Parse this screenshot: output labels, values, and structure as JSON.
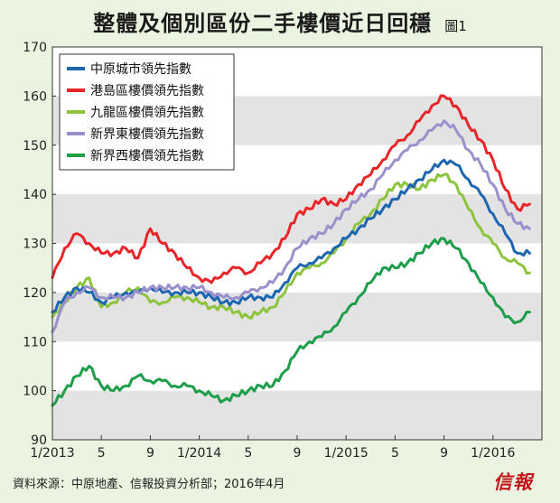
{
  "header": {
    "title": "整體及個別區份二手樓價近日回穩",
    "figure_label": "圖1"
  },
  "source": "資料來源：中原地產、信報投資分析部；2016年4月",
  "logo": "信報",
  "colors": {
    "background": "#eaf4e0",
    "band": "#e3e3e3",
    "plot_bg": "#ffffff"
  },
  "chart_data": {
    "type": "line",
    "title": "整體及個別區份二手樓價近日回穩",
    "xlabel": "",
    "ylabel": "",
    "ylim": [
      90,
      170
    ],
    "yticks": [
      90,
      100,
      110,
      120,
      130,
      140,
      150,
      160,
      170
    ],
    "xlim": [
      "2013-01",
      "2016-05"
    ],
    "xticks": [
      {
        "label": "1/2013",
        "x": "2013-01"
      },
      {
        "label": "5",
        "x": "2013-05"
      },
      {
        "label": "9",
        "x": "2013-09"
      },
      {
        "label": "1/2014",
        "x": "2014-01"
      },
      {
        "label": "5",
        "x": "2014-05"
      },
      {
        "label": "9",
        "x": "2014-09"
      },
      {
        "label": "1/2015",
        "x": "2015-01"
      },
      {
        "label": "5",
        "x": "2015-05"
      },
      {
        "label": "9",
        "x": "2015-09"
      },
      {
        "label": "1/2016",
        "x": "2016-01"
      }
    ],
    "grid": "alternating horizontal bands",
    "legend": "top-left",
    "series": [
      {
        "name": "中原城市領先指數",
        "color": "#1e66b0",
        "points": [
          [
            "2013-01",
            116
          ],
          [
            "2013-02",
            119
          ],
          [
            "2013-03",
            121
          ],
          [
            "2013-04",
            120
          ],
          [
            "2013-05",
            118
          ],
          [
            "2013-06",
            119
          ],
          [
            "2013-07",
            120
          ],
          [
            "2013-08",
            120
          ],
          [
            "2013-09",
            121
          ],
          [
            "2013-10",
            120
          ],
          [
            "2013-11",
            120
          ],
          [
            "2013-12",
            120
          ],
          [
            "2014-01",
            120
          ],
          [
            "2014-02",
            119
          ],
          [
            "2014-03",
            118
          ],
          [
            "2014-04",
            118
          ],
          [
            "2014-05",
            119
          ],
          [
            "2014-06",
            119
          ],
          [
            "2014-07",
            119
          ],
          [
            "2014-08",
            122
          ],
          [
            "2014-09",
            125
          ],
          [
            "2014-10",
            126
          ],
          [
            "2014-11",
            127
          ],
          [
            "2014-12",
            129
          ],
          [
            "2015-01",
            131
          ],
          [
            "2015-02",
            133
          ],
          [
            "2015-03",
            135
          ],
          [
            "2015-04",
            137
          ],
          [
            "2015-05",
            139
          ],
          [
            "2015-06",
            141
          ],
          [
            "2015-07",
            143
          ],
          [
            "2015-08",
            145
          ],
          [
            "2015-09",
            147
          ],
          [
            "2015-10",
            146
          ],
          [
            "2015-11",
            143
          ],
          [
            "2015-12",
            140
          ],
          [
            "2016-01",
            136
          ],
          [
            "2016-02",
            132
          ],
          [
            "2016-03",
            128
          ],
          [
            "2016-04",
            128
          ]
        ]
      },
      {
        "name": "港島區樓價領先指數",
        "color": "#e8262a",
        "points": [
          [
            "2013-01",
            123
          ],
          [
            "2013-02",
            129
          ],
          [
            "2013-03",
            132
          ],
          [
            "2013-04",
            130
          ],
          [
            "2013-05",
            128
          ],
          [
            "2013-06",
            128
          ],
          [
            "2013-07",
            129
          ],
          [
            "2013-08",
            127
          ],
          [
            "2013-09",
            133
          ],
          [
            "2013-10",
            130
          ],
          [
            "2013-11",
            128
          ],
          [
            "2013-12",
            125
          ],
          [
            "2014-01",
            123
          ],
          [
            "2014-02",
            122
          ],
          [
            "2014-03",
            124
          ],
          [
            "2014-04",
            125
          ],
          [
            "2014-05",
            124
          ],
          [
            "2014-06",
            126
          ],
          [
            "2014-07",
            128
          ],
          [
            "2014-08",
            131
          ],
          [
            "2014-09",
            136
          ],
          [
            "2014-10",
            137
          ],
          [
            "2014-11",
            139
          ],
          [
            "2014-12",
            138
          ],
          [
            "2015-01",
            139
          ],
          [
            "2015-02",
            142
          ],
          [
            "2015-03",
            144
          ],
          [
            "2015-04",
            147
          ],
          [
            "2015-05",
            150
          ],
          [
            "2015-06",
            152
          ],
          [
            "2015-07",
            155
          ],
          [
            "2015-08",
            158
          ],
          [
            "2015-09",
            160
          ],
          [
            "2015-10",
            158
          ],
          [
            "2015-11",
            154
          ],
          [
            "2015-12",
            151
          ],
          [
            "2016-01",
            147
          ],
          [
            "2016-02",
            141
          ],
          [
            "2016-03",
            137
          ],
          [
            "2016-04",
            138
          ]
        ]
      },
      {
        "name": "九龍區樓價領先指數",
        "color": "#8cc43d",
        "points": [
          [
            "2013-01",
            115
          ],
          [
            "2013-02",
            118
          ],
          [
            "2013-03",
            121
          ],
          [
            "2013-04",
            123
          ],
          [
            "2013-05",
            117
          ],
          [
            "2013-06",
            118
          ],
          [
            "2013-07",
            120
          ],
          [
            "2013-08",
            121
          ],
          [
            "2013-09",
            118
          ],
          [
            "2013-10",
            118
          ],
          [
            "2013-11",
            119
          ],
          [
            "2013-12",
            119
          ],
          [
            "2014-01",
            118
          ],
          [
            "2014-02",
            117
          ],
          [
            "2014-03",
            117
          ],
          [
            "2014-04",
            116
          ],
          [
            "2014-05",
            115
          ],
          [
            "2014-06",
            116
          ],
          [
            "2014-07",
            117
          ],
          [
            "2014-08",
            120
          ],
          [
            "2014-09",
            124
          ],
          [
            "2014-10",
            125
          ],
          [
            "2014-11",
            126
          ],
          [
            "2014-12",
            128
          ],
          [
            "2015-01",
            131
          ],
          [
            "2015-02",
            134
          ],
          [
            "2015-03",
            136
          ],
          [
            "2015-04",
            139
          ],
          [
            "2015-05",
            142
          ],
          [
            "2015-06",
            142
          ],
          [
            "2015-07",
            141
          ],
          [
            "2015-08",
            143
          ],
          [
            "2015-09",
            144
          ],
          [
            "2015-10",
            142
          ],
          [
            "2015-11",
            137
          ],
          [
            "2015-12",
            133
          ],
          [
            "2016-01",
            130
          ],
          [
            "2016-02",
            127
          ],
          [
            "2016-03",
            126
          ],
          [
            "2016-04",
            124
          ]
        ]
      },
      {
        "name": "新界東樓價領先指數",
        "color": "#9a90cc",
        "points": [
          [
            "2013-01",
            112
          ],
          [
            "2013-02",
            118
          ],
          [
            "2013-03",
            120
          ],
          [
            "2013-04",
            121
          ],
          [
            "2013-05",
            119
          ],
          [
            "2013-06",
            119
          ],
          [
            "2013-07",
            119
          ],
          [
            "2013-08",
            120
          ],
          [
            "2013-09",
            121
          ],
          [
            "2013-10",
            121
          ],
          [
            "2013-11",
            121
          ],
          [
            "2013-12",
            121
          ],
          [
            "2014-01",
            121
          ],
          [
            "2014-02",
            120
          ],
          [
            "2014-03",
            119
          ],
          [
            "2014-04",
            119
          ],
          [
            "2014-05",
            120
          ],
          [
            "2014-06",
            121
          ],
          [
            "2014-07",
            122
          ],
          [
            "2014-08",
            125
          ],
          [
            "2014-09",
            129
          ],
          [
            "2014-10",
            131
          ],
          [
            "2014-11",
            132
          ],
          [
            "2014-12",
            134
          ],
          [
            "2015-01",
            137
          ],
          [
            "2015-02",
            139
          ],
          [
            "2015-03",
            141
          ],
          [
            "2015-04",
            144
          ],
          [
            "2015-05",
            147
          ],
          [
            "2015-06",
            149
          ],
          [
            "2015-07",
            151
          ],
          [
            "2015-08",
            153
          ],
          [
            "2015-09",
            155
          ],
          [
            "2015-10",
            153
          ],
          [
            "2015-11",
            149
          ],
          [
            "2015-12",
            146
          ],
          [
            "2016-01",
            142
          ],
          [
            "2016-02",
            137
          ],
          [
            "2016-03",
            134
          ],
          [
            "2016-04",
            133
          ]
        ]
      },
      {
        "name": "新界西樓價領先指數",
        "color": "#1e9e4a",
        "points": [
          [
            "2013-01",
            97
          ],
          [
            "2013-02",
            100
          ],
          [
            "2013-03",
            103
          ],
          [
            "2013-04",
            105
          ],
          [
            "2013-05",
            101
          ],
          [
            "2013-06",
            100
          ],
          [
            "2013-07",
            101
          ],
          [
            "2013-08",
            103
          ],
          [
            "2013-09",
            102
          ],
          [
            "2013-10",
            102
          ],
          [
            "2013-11",
            101
          ],
          [
            "2013-12",
            101
          ],
          [
            "2014-01",
            100
          ],
          [
            "2014-02",
            99
          ],
          [
            "2014-03",
            98
          ],
          [
            "2014-04",
            99
          ],
          [
            "2014-05",
            100
          ],
          [
            "2014-06",
            101
          ],
          [
            "2014-07",
            101
          ],
          [
            "2014-08",
            104
          ],
          [
            "2014-09",
            108
          ],
          [
            "2014-10",
            110
          ],
          [
            "2014-11",
            111
          ],
          [
            "2014-12",
            113
          ],
          [
            "2015-01",
            116
          ],
          [
            "2015-02",
            119
          ],
          [
            "2015-03",
            122
          ],
          [
            "2015-04",
            125
          ],
          [
            "2015-05",
            125
          ],
          [
            "2015-06",
            126
          ],
          [
            "2015-07",
            128
          ],
          [
            "2015-08",
            130
          ],
          [
            "2015-09",
            131
          ],
          [
            "2015-10",
            129
          ],
          [
            "2015-11",
            126
          ],
          [
            "2015-12",
            122
          ],
          [
            "2016-01",
            119
          ],
          [
            "2016-02",
            115
          ],
          [
            "2016-03",
            114
          ],
          [
            "2016-04",
            116
          ]
        ]
      }
    ]
  }
}
